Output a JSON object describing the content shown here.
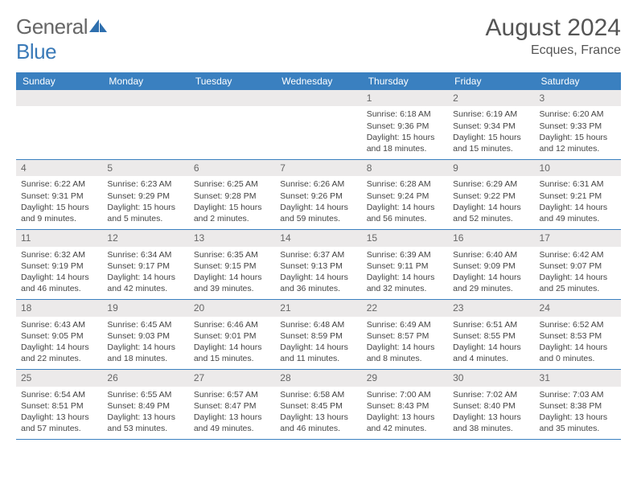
{
  "brand": {
    "name1": "General",
    "name2": "Blue"
  },
  "title": "August 2024",
  "location": "Ecques, France",
  "colors": {
    "header_bg": "#3a80c0",
    "header_text": "#ffffff",
    "daynum_bg": "#eceaea",
    "rule": "#3a80c0",
    "text": "#444444",
    "brand_gray": "#666666",
    "brand_blue": "#3a7ab8"
  },
  "dayNames": [
    "Sunday",
    "Monday",
    "Tuesday",
    "Wednesday",
    "Thursday",
    "Friday",
    "Saturday"
  ],
  "weeks": [
    [
      null,
      null,
      null,
      null,
      {
        "n": "1",
        "sr": "6:18 AM",
        "ss": "9:36 PM",
        "dl": "15 hours and 18 minutes."
      },
      {
        "n": "2",
        "sr": "6:19 AM",
        "ss": "9:34 PM",
        "dl": "15 hours and 15 minutes."
      },
      {
        "n": "3",
        "sr": "6:20 AM",
        "ss": "9:33 PM",
        "dl": "15 hours and 12 minutes."
      }
    ],
    [
      {
        "n": "4",
        "sr": "6:22 AM",
        "ss": "9:31 PM",
        "dl": "15 hours and 9 minutes."
      },
      {
        "n": "5",
        "sr": "6:23 AM",
        "ss": "9:29 PM",
        "dl": "15 hours and 5 minutes."
      },
      {
        "n": "6",
        "sr": "6:25 AM",
        "ss": "9:28 PM",
        "dl": "15 hours and 2 minutes."
      },
      {
        "n": "7",
        "sr": "6:26 AM",
        "ss": "9:26 PM",
        "dl": "14 hours and 59 minutes."
      },
      {
        "n": "8",
        "sr": "6:28 AM",
        "ss": "9:24 PM",
        "dl": "14 hours and 56 minutes."
      },
      {
        "n": "9",
        "sr": "6:29 AM",
        "ss": "9:22 PM",
        "dl": "14 hours and 52 minutes."
      },
      {
        "n": "10",
        "sr": "6:31 AM",
        "ss": "9:21 PM",
        "dl": "14 hours and 49 minutes."
      }
    ],
    [
      {
        "n": "11",
        "sr": "6:32 AM",
        "ss": "9:19 PM",
        "dl": "14 hours and 46 minutes."
      },
      {
        "n": "12",
        "sr": "6:34 AM",
        "ss": "9:17 PM",
        "dl": "14 hours and 42 minutes."
      },
      {
        "n": "13",
        "sr": "6:35 AM",
        "ss": "9:15 PM",
        "dl": "14 hours and 39 minutes."
      },
      {
        "n": "14",
        "sr": "6:37 AM",
        "ss": "9:13 PM",
        "dl": "14 hours and 36 minutes."
      },
      {
        "n": "15",
        "sr": "6:39 AM",
        "ss": "9:11 PM",
        "dl": "14 hours and 32 minutes."
      },
      {
        "n": "16",
        "sr": "6:40 AM",
        "ss": "9:09 PM",
        "dl": "14 hours and 29 minutes."
      },
      {
        "n": "17",
        "sr": "6:42 AM",
        "ss": "9:07 PM",
        "dl": "14 hours and 25 minutes."
      }
    ],
    [
      {
        "n": "18",
        "sr": "6:43 AM",
        "ss": "9:05 PM",
        "dl": "14 hours and 22 minutes."
      },
      {
        "n": "19",
        "sr": "6:45 AM",
        "ss": "9:03 PM",
        "dl": "14 hours and 18 minutes."
      },
      {
        "n": "20",
        "sr": "6:46 AM",
        "ss": "9:01 PM",
        "dl": "14 hours and 15 minutes."
      },
      {
        "n": "21",
        "sr": "6:48 AM",
        "ss": "8:59 PM",
        "dl": "14 hours and 11 minutes."
      },
      {
        "n": "22",
        "sr": "6:49 AM",
        "ss": "8:57 PM",
        "dl": "14 hours and 8 minutes."
      },
      {
        "n": "23",
        "sr": "6:51 AM",
        "ss": "8:55 PM",
        "dl": "14 hours and 4 minutes."
      },
      {
        "n": "24",
        "sr": "6:52 AM",
        "ss": "8:53 PM",
        "dl": "14 hours and 0 minutes."
      }
    ],
    [
      {
        "n": "25",
        "sr": "6:54 AM",
        "ss": "8:51 PM",
        "dl": "13 hours and 57 minutes."
      },
      {
        "n": "26",
        "sr": "6:55 AM",
        "ss": "8:49 PM",
        "dl": "13 hours and 53 minutes."
      },
      {
        "n": "27",
        "sr": "6:57 AM",
        "ss": "8:47 PM",
        "dl": "13 hours and 49 minutes."
      },
      {
        "n": "28",
        "sr": "6:58 AM",
        "ss": "8:45 PM",
        "dl": "13 hours and 46 minutes."
      },
      {
        "n": "29",
        "sr": "7:00 AM",
        "ss": "8:43 PM",
        "dl": "13 hours and 42 minutes."
      },
      {
        "n": "30",
        "sr": "7:02 AM",
        "ss": "8:40 PM",
        "dl": "13 hours and 38 minutes."
      },
      {
        "n": "31",
        "sr": "7:03 AM",
        "ss": "8:38 PM",
        "dl": "13 hours and 35 minutes."
      }
    ]
  ],
  "labels": {
    "sunrise": "Sunrise: ",
    "sunset": "Sunset: ",
    "daylight": "Daylight: "
  }
}
